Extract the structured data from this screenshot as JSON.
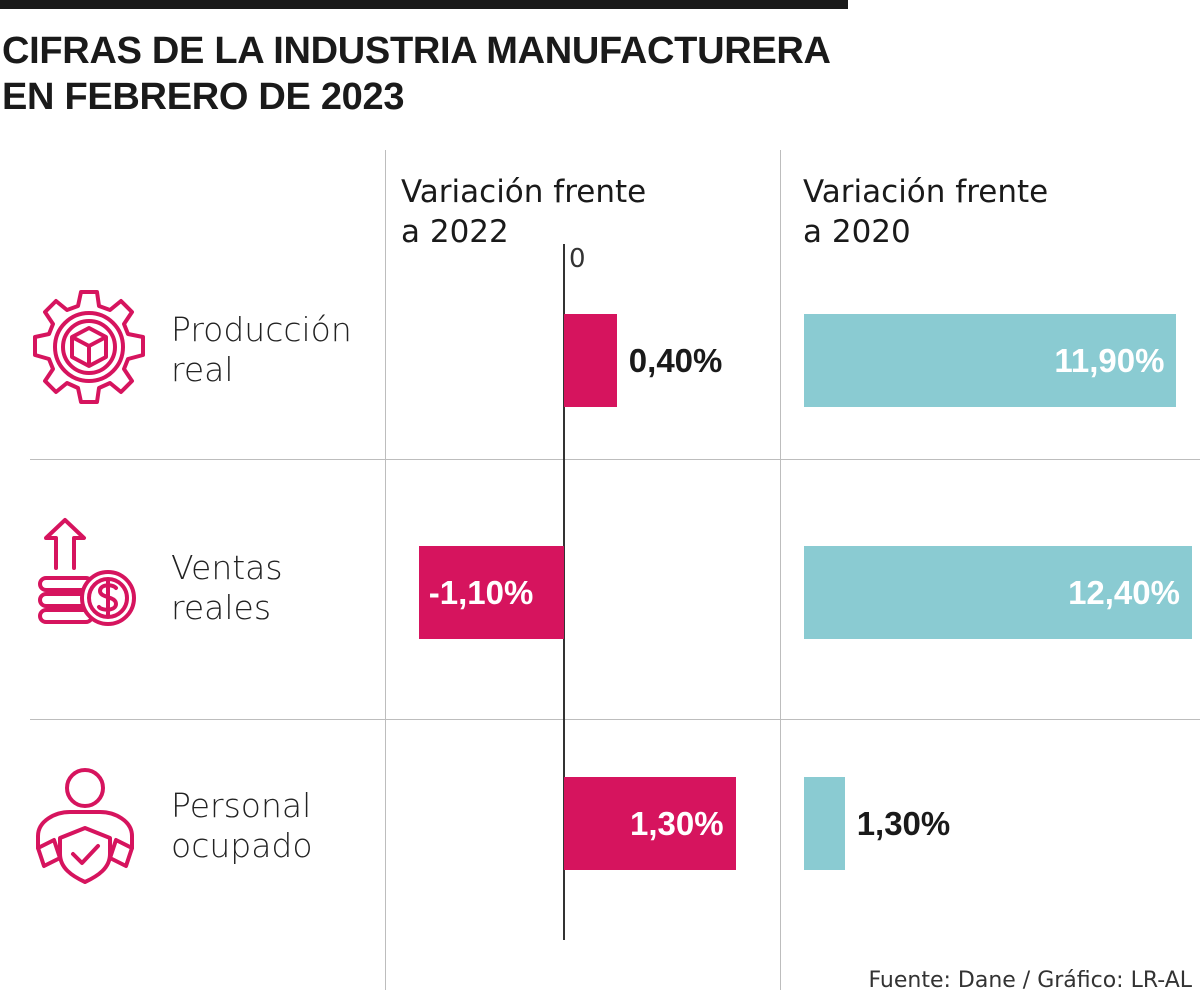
{
  "title_line1": "CIFRAS DE LA INDUSTRIA MANUFACTURERA",
  "title_line2": "EN FEBRERO DE 2023",
  "source": "Fuente: Dane / Gráfico: LR-AL",
  "colors": {
    "primary": "#d6145e",
    "secondary": "#8acbd2",
    "text": "#1a1a1a"
  },
  "chart_data": [
    {
      "type": "bar",
      "orientation": "horizontal",
      "title": "Variación frente a 2022",
      "title_lines": [
        "Variación frente",
        "a 2022"
      ],
      "zero_label": "0",
      "categories": [
        "Producción real",
        "Ventas reales",
        "Personal ocupado"
      ],
      "values": [
        0.4,
        -1.1,
        1.3
      ],
      "data_labels": [
        "0,40%",
        "-1,10%",
        "1,30%"
      ],
      "color": "#d6145e"
    },
    {
      "type": "bar",
      "orientation": "horizontal",
      "title": "Variación frente a 2020",
      "title_lines": [
        "Variación frente",
        "a 2020"
      ],
      "categories": [
        "Producción real",
        "Ventas reales",
        "Personal ocupado"
      ],
      "values": [
        11.9,
        12.4,
        1.3
      ],
      "data_labels": [
        "11,90%",
        "12,40%",
        "1,30%"
      ],
      "color": "#8acbd2"
    }
  ],
  "rows": [
    {
      "label_line1": "Producción",
      "label_line2": "real",
      "icon": "gear-box-icon"
    },
    {
      "label_line1": "Ventas",
      "label_line2": "reales",
      "icon": "coins-dollar-arrow-icon"
    },
    {
      "label_line1": "Personal",
      "label_line2": "ocupado",
      "icon": "person-shield-check-icon"
    }
  ]
}
